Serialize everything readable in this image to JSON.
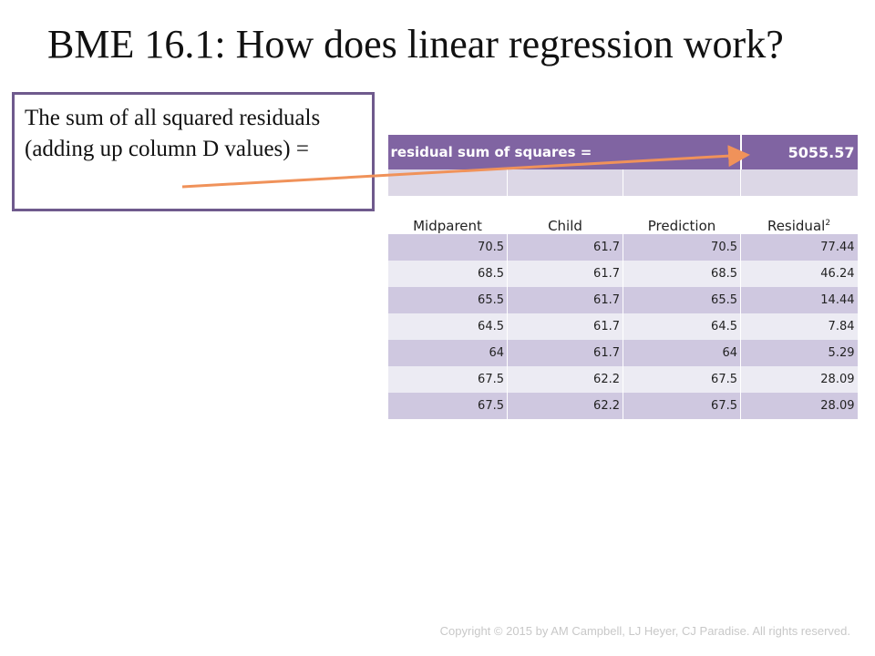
{
  "slide": {
    "title": "BME 16.1: How does linear regression work?",
    "callout_text": "The sum of all squared residuals (adding up column D values) =",
    "copyright": "Copyright © 2015 by AM Campbell, LJ Heyer, CJ Paradise. All rights reserved."
  },
  "sheet": {
    "summary_label": "residual sum of squares =",
    "summary_value": "5055.57",
    "headers": [
      "Midparent",
      "Child",
      "Prediction",
      "Residual"
    ],
    "residual_superscript": "2",
    "rows": [
      [
        "70.5",
        "61.7",
        "70.5",
        "77.44"
      ],
      [
        "68.5",
        "61.7",
        "68.5",
        "46.24"
      ],
      [
        "65.5",
        "61.7",
        "65.5",
        "14.44"
      ],
      [
        "64.5",
        "61.7",
        "64.5",
        "7.84"
      ],
      [
        "64",
        "61.7",
        "64",
        "5.29"
      ],
      [
        "67.5",
        "62.2",
        "67.5",
        "28.09"
      ],
      [
        "67.5",
        "62.2",
        "67.5",
        "28.09"
      ]
    ]
  },
  "colors": {
    "accent_purple": "#8064a2",
    "arrow_orange": "#f0925a",
    "callout_border": "#6f5a8d"
  }
}
